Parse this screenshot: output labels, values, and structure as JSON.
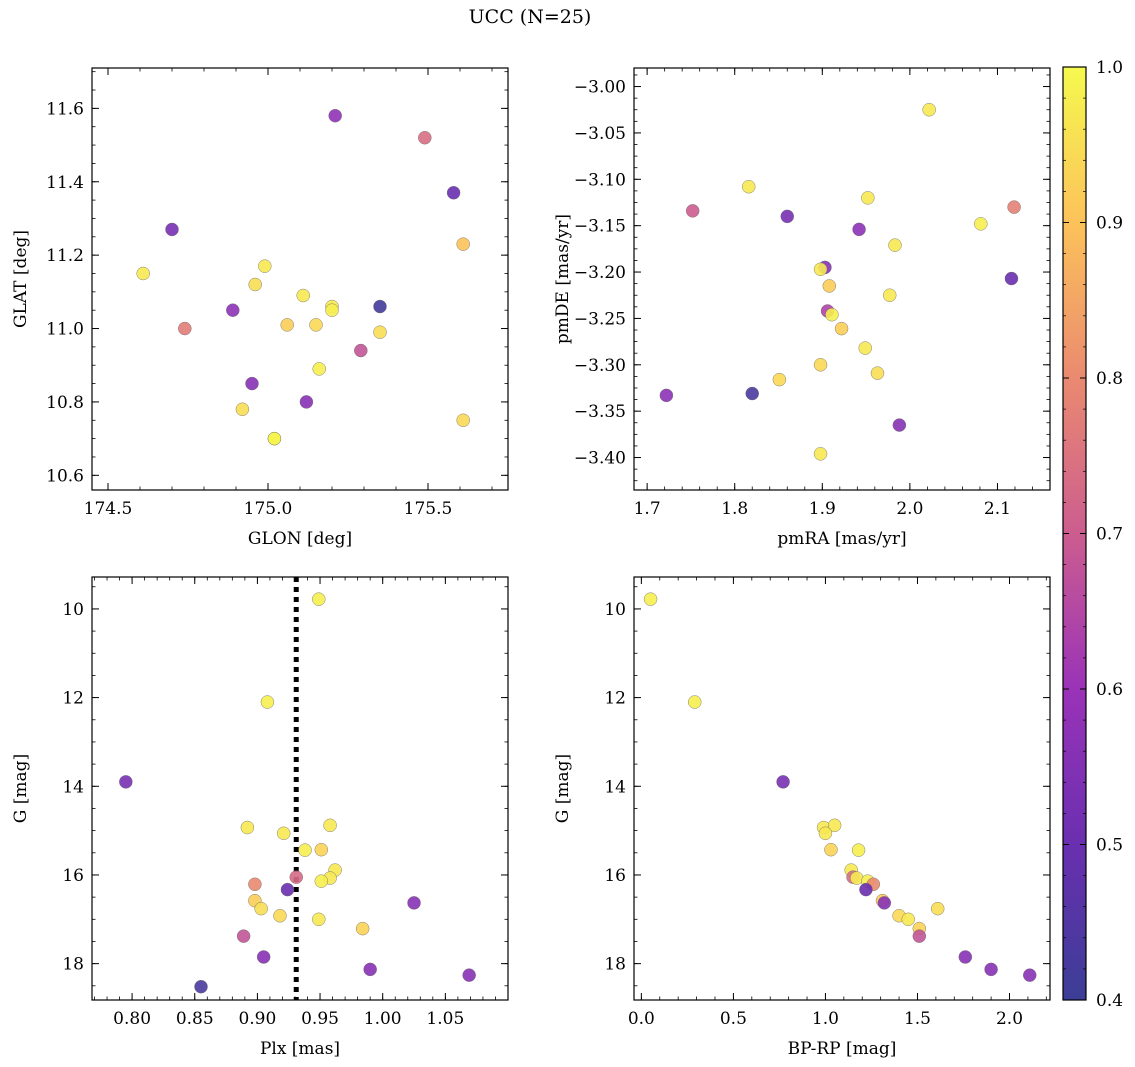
{
  "figure": {
    "title": "UCC (N=25)"
  },
  "colorbar": {
    "min": 0.4,
    "max": 1.0,
    "ticks": [
      0.4,
      0.5,
      0.6,
      0.7,
      0.8,
      0.9,
      1.0
    ],
    "tick_labels": [
      "0.4",
      "0.5",
      "0.6",
      "0.7",
      "0.8",
      "0.9",
      "1.0"
    ],
    "colormap": "plasma"
  },
  "chart_data": [
    {
      "type": "scatter",
      "title": "",
      "xlabel": "GLON [deg]",
      "ylabel": "GLAT [deg]",
      "xlim": [
        174.45,
        175.75
      ],
      "ylim": [
        10.56,
        11.71
      ],
      "xticks": [
        174.5,
        175.0,
        175.5
      ],
      "xtick_labels": [
        "174.5",
        "175.0",
        "175.5"
      ],
      "yticks": [
        10.6,
        10.8,
        11.0,
        11.2,
        11.4,
        11.6
      ],
      "ytick_labels": [
        "10.6",
        "10.8",
        "11.0",
        "11.2",
        "11.4",
        "11.6"
      ],
      "y_inverted": false,
      "points": [
        {
          "x": 175.21,
          "y": 11.58,
          "c": 0.58
        },
        {
          "x": 175.49,
          "y": 11.52,
          "c": 0.74
        },
        {
          "x": 175.58,
          "y": 11.37,
          "c": 0.5
        },
        {
          "x": 174.7,
          "y": 11.27,
          "c": 0.53
        },
        {
          "x": 175.61,
          "y": 11.23,
          "c": 0.9
        },
        {
          "x": 174.61,
          "y": 11.15,
          "c": 0.97
        },
        {
          "x": 174.99,
          "y": 11.17,
          "c": 0.97
        },
        {
          "x": 174.96,
          "y": 11.12,
          "c": 0.95
        },
        {
          "x": 175.11,
          "y": 11.09,
          "c": 0.97
        },
        {
          "x": 175.2,
          "y": 11.06,
          "c": 0.97
        },
        {
          "x": 175.2,
          "y": 11.05,
          "c": 0.98
        },
        {
          "x": 175.35,
          "y": 11.06,
          "c": 0.42
        },
        {
          "x": 174.89,
          "y": 11.05,
          "c": 0.57
        },
        {
          "x": 174.74,
          "y": 11.0,
          "c": 0.77
        },
        {
          "x": 175.06,
          "y": 11.01,
          "c": 0.92
        },
        {
          "x": 175.15,
          "y": 11.01,
          "c": 0.94
        },
        {
          "x": 175.35,
          "y": 10.99,
          "c": 0.95
        },
        {
          "x": 175.29,
          "y": 10.94,
          "c": 0.68
        },
        {
          "x": 175.16,
          "y": 10.89,
          "c": 0.98
        },
        {
          "x": 174.95,
          "y": 10.85,
          "c": 0.56
        },
        {
          "x": 175.12,
          "y": 10.8,
          "c": 0.56
        },
        {
          "x": 174.92,
          "y": 10.78,
          "c": 0.95
        },
        {
          "x": 175.61,
          "y": 10.75,
          "c": 0.94
        },
        {
          "x": 175.02,
          "y": 10.7,
          "c": 0.99
        },
        {
          "x": 175.02,
          "y": 10.7,
          "c": 0.99
        }
      ]
    },
    {
      "type": "scatter",
      "title": "",
      "xlabel": "pmRA [mas/yr]",
      "ylabel": "pmDE [mas/yr]",
      "xlim": [
        1.685,
        2.16
      ],
      "ylim": [
        -3.435,
        -2.98
      ],
      "xticks": [
        1.7,
        1.8,
        1.9,
        2.0,
        2.1
      ],
      "xtick_labels": [
        "1.7",
        "1.8",
        "1.9",
        "2.0",
        "2.1"
      ],
      "yticks": [
        -3.4,
        -3.35,
        -3.3,
        -3.25,
        -3.2,
        -3.15,
        -3.1,
        -3.05,
        -3.0
      ],
      "ytick_labels": [
        "−3.40",
        "−3.35",
        "−3.30",
        "−3.25",
        "−3.20",
        "−3.15",
        "−3.10",
        "−3.05",
        "−3.00"
      ],
      "y_inverted": false,
      "points": [
        {
          "x": 2.022,
          "y": -3.025,
          "c": 0.97
        },
        {
          "x": 1.816,
          "y": -3.108,
          "c": 0.97
        },
        {
          "x": 1.952,
          "y": -3.12,
          "c": 0.97
        },
        {
          "x": 1.752,
          "y": -3.134,
          "c": 0.7
        },
        {
          "x": 1.86,
          "y": -3.14,
          "c": 0.53
        },
        {
          "x": 2.119,
          "y": -3.13,
          "c": 0.78
        },
        {
          "x": 2.081,
          "y": -3.148,
          "c": 0.98
        },
        {
          "x": 1.942,
          "y": -3.154,
          "c": 0.57
        },
        {
          "x": 1.983,
          "y": -3.171,
          "c": 0.97
        },
        {
          "x": 1.903,
          "y": -3.195,
          "c": 0.56
        },
        {
          "x": 1.898,
          "y": -3.197,
          "c": 0.97
        },
        {
          "x": 2.116,
          "y": -3.207,
          "c": 0.5
        },
        {
          "x": 1.908,
          "y": -3.215,
          "c": 0.92
        },
        {
          "x": 1.977,
          "y": -3.225,
          "c": 0.97
        },
        {
          "x": 1.906,
          "y": -3.242,
          "c": 0.64
        },
        {
          "x": 1.911,
          "y": -3.246,
          "c": 0.98
        },
        {
          "x": 1.922,
          "y": -3.261,
          "c": 0.92
        },
        {
          "x": 1.949,
          "y": -3.282,
          "c": 0.97
        },
        {
          "x": 1.898,
          "y": -3.3,
          "c": 0.94
        },
        {
          "x": 1.963,
          "y": -3.309,
          "c": 0.95
        },
        {
          "x": 1.851,
          "y": -3.316,
          "c": 0.94
        },
        {
          "x": 1.722,
          "y": -3.333,
          "c": 0.57
        },
        {
          "x": 1.82,
          "y": -3.331,
          "c": 0.43
        },
        {
          "x": 1.988,
          "y": -3.365,
          "c": 0.56
        },
        {
          "x": 1.898,
          "y": -3.396,
          "c": 0.97
        }
      ]
    },
    {
      "type": "scatter",
      "title": "",
      "xlabel": "Plx [mas]",
      "ylabel": "G [mag]",
      "xlim": [
        0.768,
        1.1
      ],
      "ylim": [
        9.28,
        18.82
      ],
      "xticks": [
        0.8,
        0.85,
        0.9,
        0.95,
        1.0,
        1.05
      ],
      "xtick_labels": [
        "0.80",
        "0.85",
        "0.90",
        "0.95",
        "1.00",
        "1.05"
      ],
      "yticks": [
        10,
        12,
        14,
        16,
        18
      ],
      "ytick_labels": [
        "10",
        "12",
        "14",
        "16",
        "18"
      ],
      "y_inverted": true,
      "vline": {
        "x": 0.931,
        "color": "#000000",
        "style": "dotted"
      },
      "points": [
        {
          "x": 0.949,
          "y": 9.78,
          "c": 0.98
        },
        {
          "x": 0.908,
          "y": 12.1,
          "c": 0.98
        },
        {
          "x": 0.795,
          "y": 13.9,
          "c": 0.53
        },
        {
          "x": 0.892,
          "y": 14.93,
          "c": 0.97
        },
        {
          "x": 0.958,
          "y": 14.88,
          "c": 0.97
        },
        {
          "x": 0.921,
          "y": 15.06,
          "c": 0.97
        },
        {
          "x": 0.938,
          "y": 15.44,
          "c": 0.98
        },
        {
          "x": 0.951,
          "y": 15.43,
          "c": 0.93
        },
        {
          "x": 0.962,
          "y": 15.89,
          "c": 0.97
        },
        {
          "x": 0.931,
          "y": 16.05,
          "c": 0.73
        },
        {
          "x": 0.958,
          "y": 16.07,
          "c": 0.97
        },
        {
          "x": 0.951,
          "y": 16.14,
          "c": 0.98
        },
        {
          "x": 0.898,
          "y": 16.21,
          "c": 0.8
        },
        {
          "x": 0.924,
          "y": 16.33,
          "c": 0.5
        },
        {
          "x": 0.898,
          "y": 16.58,
          "c": 0.92
        },
        {
          "x": 1.025,
          "y": 16.63,
          "c": 0.56
        },
        {
          "x": 0.903,
          "y": 16.76,
          "c": 0.95
        },
        {
          "x": 0.918,
          "y": 16.92,
          "c": 0.94
        },
        {
          "x": 0.949,
          "y": 17.0,
          "c": 0.97
        },
        {
          "x": 0.984,
          "y": 17.21,
          "c": 0.93
        },
        {
          "x": 0.889,
          "y": 17.38,
          "c": 0.68
        },
        {
          "x": 0.905,
          "y": 17.85,
          "c": 0.56
        },
        {
          "x": 0.99,
          "y": 18.13,
          "c": 0.56
        },
        {
          "x": 1.069,
          "y": 18.26,
          "c": 0.56
        },
        {
          "x": 0.855,
          "y": 18.52,
          "c": 0.43
        }
      ]
    },
    {
      "type": "scatter",
      "title": "",
      "xlabel": "BP-RP [mag]",
      "ylabel": "G [mag]",
      "xlim": [
        -0.04,
        2.22
      ],
      "ylim": [
        9.28,
        18.82
      ],
      "xticks": [
        0.0,
        0.5,
        1.0,
        1.5,
        2.0
      ],
      "xtick_labels": [
        "0.0",
        "0.5",
        "1.0",
        "1.5",
        "2.0"
      ],
      "yticks": [
        10,
        12,
        14,
        16,
        18
      ],
      "ytick_labels": [
        "10",
        "12",
        "14",
        "16",
        "18"
      ],
      "y_inverted": true,
      "points": [
        {
          "x": 0.05,
          "y": 9.78,
          "c": 0.98
        },
        {
          "x": 0.29,
          "y": 12.1,
          "c": 0.98
        },
        {
          "x": 0.77,
          "y": 13.9,
          "c": 0.53
        },
        {
          "x": 0.99,
          "y": 14.93,
          "c": 0.97
        },
        {
          "x": 1.05,
          "y": 14.88,
          "c": 0.97
        },
        {
          "x": 1.0,
          "y": 15.06,
          "c": 0.97
        },
        {
          "x": 1.18,
          "y": 15.44,
          "c": 0.98
        },
        {
          "x": 1.03,
          "y": 15.43,
          "c": 0.93
        },
        {
          "x": 1.14,
          "y": 15.89,
          "c": 0.97
        },
        {
          "x": 1.15,
          "y": 16.05,
          "c": 0.73
        },
        {
          "x": 1.17,
          "y": 16.07,
          "c": 0.97
        },
        {
          "x": 1.23,
          "y": 16.14,
          "c": 0.98
        },
        {
          "x": 1.26,
          "y": 16.21,
          "c": 0.8
        },
        {
          "x": 1.22,
          "y": 16.33,
          "c": 0.5
        },
        {
          "x": 1.31,
          "y": 16.58,
          "c": 0.92
        },
        {
          "x": 1.32,
          "y": 16.63,
          "c": 0.56
        },
        {
          "x": 1.61,
          "y": 16.76,
          "c": 0.95
        },
        {
          "x": 1.4,
          "y": 16.92,
          "c": 0.94
        },
        {
          "x": 1.45,
          "y": 17.0,
          "c": 0.97
        },
        {
          "x": 1.51,
          "y": 17.21,
          "c": 0.93
        },
        {
          "x": 1.51,
          "y": 17.38,
          "c": 0.68
        },
        {
          "x": 1.76,
          "y": 17.85,
          "c": 0.56
        },
        {
          "x": 1.9,
          "y": 18.13,
          "c": 0.56
        },
        {
          "x": 2.11,
          "y": 18.26,
          "c": 0.56
        }
      ]
    }
  ]
}
